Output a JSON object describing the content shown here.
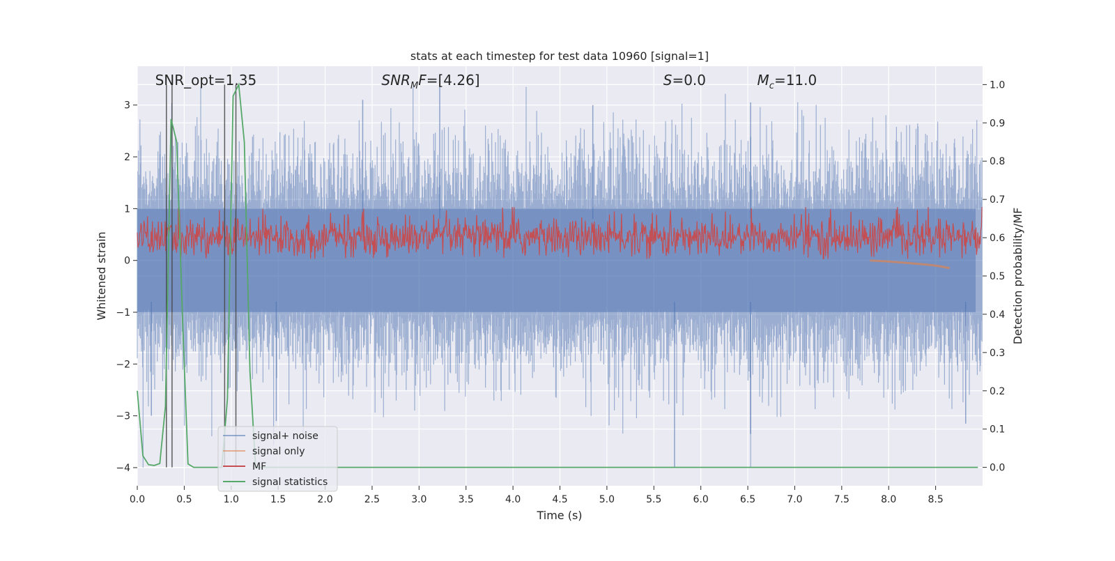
{
  "chart_data": {
    "type": "line",
    "title": "stats at each timestep for test data 10960 [signal=1]",
    "xlabel": "Time (s)",
    "ylabel": "Whitened strain",
    "ylabel_right": "Detection probability/MF",
    "xlim": [
      0,
      9.0
    ],
    "ylim": [
      -4.35,
      3.75
    ],
    "ylim_right": [
      -0.048,
      1.048
    ],
    "x_ticks": [
      "0.0",
      "0.5",
      "1.0",
      "1.5",
      "2.0",
      "2.5",
      "3.0",
      "3.5",
      "4.0",
      "4.5",
      "5.0",
      "5.5",
      "6.0",
      "6.5",
      "7.0",
      "7.5",
      "8.0",
      "8.5"
    ],
    "y_ticks": [
      "3",
      "2",
      "1",
      "0",
      "−1",
      "−2",
      "−3",
      "−4"
    ],
    "y_ticks_right": [
      "1.0",
      "0.9",
      "0.8",
      "0.7",
      "0.6",
      "0.5",
      "0.4",
      "0.3",
      "0.2",
      "0.1",
      "0.0"
    ],
    "grid": true,
    "legend_position": "lower-left",
    "colors": {
      "noise": "#4c72b0",
      "signal": "#dd8452",
      "mf": "#c44e52",
      "stats": "#55a868",
      "background": "#eaeaf2",
      "grid": "#ffffff",
      "vline": "#444444"
    },
    "series": [
      {
        "name": "signal+ noise",
        "description_values": {
          "y_range": [
            -4.0,
            3.35
          ],
          "typical_band": [
            -1.0,
            1.0
          ]
        }
      },
      {
        "name": "signal only",
        "x": [
          7.8,
          8.0,
          8.2,
          8.4,
          8.5,
          8.6,
          8.65
        ],
        "y": [
          0.0,
          -0.02,
          -0.05,
          -0.08,
          -0.1,
          -0.13,
          -0.15
        ]
      },
      {
        "name": "MF",
        "description_values": {
          "axis": "right",
          "typical_band": [
            0.55,
            0.65
          ],
          "peak": 0.68
        }
      },
      {
        "name": "signal statistics",
        "axis": "right",
        "x": [
          0.0,
          0.06,
          0.12,
          0.18,
          0.24,
          0.3,
          0.36,
          0.42,
          0.48,
          0.54,
          0.6,
          0.9,
          0.96,
          1.02,
          1.08,
          1.14,
          1.2,
          1.26,
          1.32,
          8.95
        ],
        "y": [
          0.2,
          0.03,
          0.007,
          0.005,
          0.01,
          0.16,
          0.91,
          0.85,
          0.4,
          0.009,
          0.0,
          0.0,
          0.18,
          0.97,
          1.0,
          0.85,
          0.25,
          0.0,
          0.0,
          0.0
        ]
      }
    ],
    "vertical_lines_x": [
      0.31,
      0.37,
      0.93,
      1.05
    ],
    "annotations": [
      {
        "text": "SNR_opt=1.35",
        "x": 0.19
      },
      {
        "prefix": "SNR",
        "sub": "M",
        "suffix": "F=[4.26]",
        "x": 2.6
      },
      {
        "prefix": "S",
        "suffix": "=0.0",
        "x": 5.6
      },
      {
        "prefix": "M",
        "sub": "c",
        "suffix": "=11.0",
        "x": 6.6
      }
    ],
    "legend": [
      "signal+ noise",
      "signal only",
      "MF",
      "signal statistics"
    ]
  }
}
